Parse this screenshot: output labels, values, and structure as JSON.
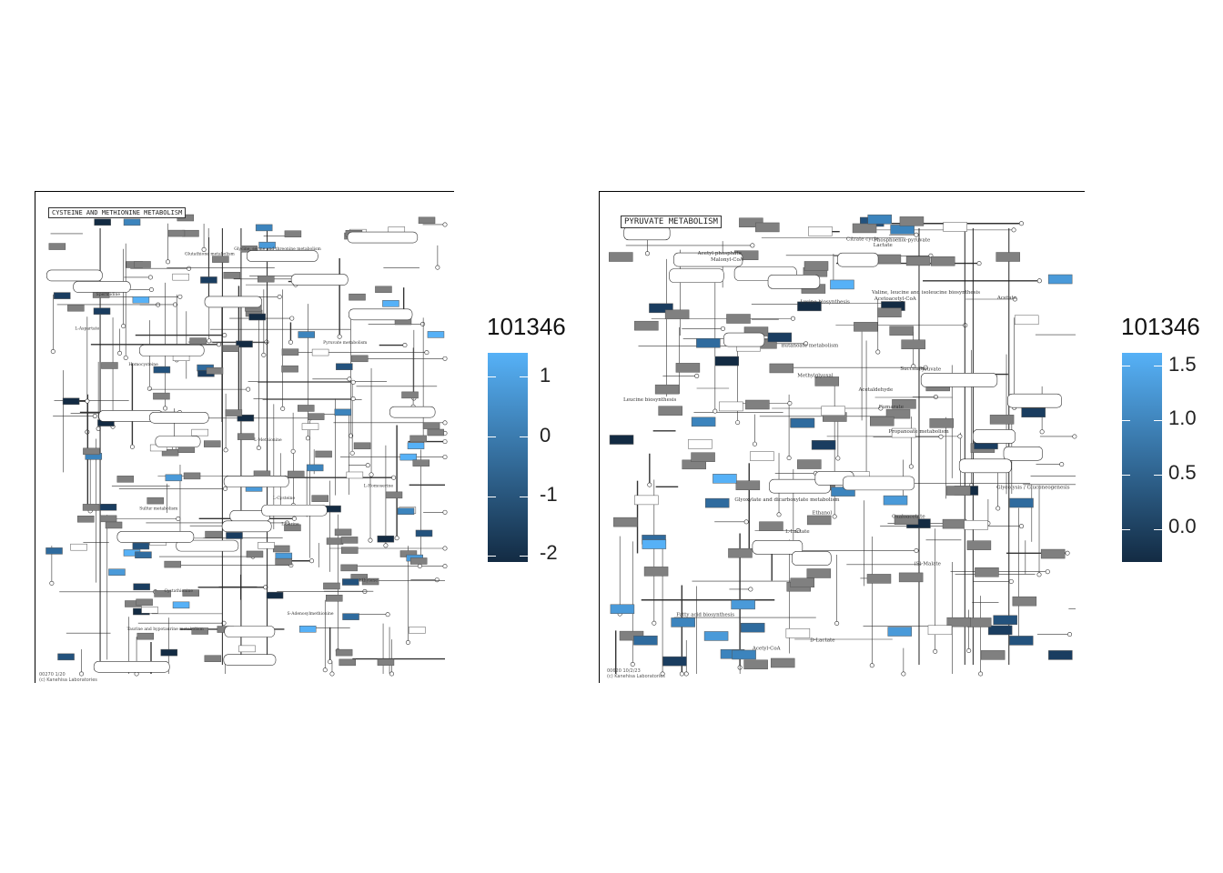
{
  "panels": [
    {
      "map_title": "CYSTEINE AND METHIONINE METABOLISM",
      "footer": "00270 1/20\n(c) Kanehisa Laboratories",
      "legend": {
        "title": "101346",
        "ticks": [
          {
            "value": 1,
            "label": "1"
          },
          {
            "value": 0,
            "label": "0"
          },
          {
            "value": -1,
            "label": "-1"
          },
          {
            "value": -2,
            "label": "-2"
          }
        ],
        "range": [
          -2.1,
          1.4
        ],
        "colors": {
          "high": "#56b1f7",
          "low": "#132b43"
        }
      },
      "labels": [
        "S-Adenosylmethionine",
        "L-Cysteine",
        "L-Methionine",
        "Glutathione metabolism",
        "Taurine and hypotaurine metabolism",
        "Pyruvate metabolism",
        "Homocysteine",
        "L-Serine",
        "Spermidine",
        "Ethylene",
        "Sulfur metabolism",
        "L-Homoserine",
        "Cystathionine",
        "L-Aspartate",
        "Glycine, serine and threonine metabolism"
      ]
    },
    {
      "map_title": "PYRUVATE METABOLISM",
      "footer": "00620 10/2/23\n(c) Kanehisa Laboratories",
      "legend": {
        "title": "101346",
        "ticks": [
          {
            "value": 1.5,
            "label": "1.5"
          },
          {
            "value": 1.0,
            "label": "1.0"
          },
          {
            "value": 0.5,
            "label": "0.5"
          },
          {
            "value": 0.0,
            "label": "0.0"
          }
        ],
        "range": [
          -0.3,
          1.62
        ],
        "colors": {
          "high": "#56b1f7",
          "low": "#132b43"
        }
      },
      "labels": [
        "Glycolysis / Gluconeogenesis",
        "Phosphoenol-pyruvate",
        "Pyruvate",
        "Acetyl-CoA",
        "Acetate",
        "Acetaldehyde",
        "Oxaloacetate",
        "(S)-Malate",
        "Fumarate",
        "Succinate",
        "Citrate cycle",
        "Lactate",
        "D-Lactate",
        "L-Lactate",
        "Methylglyoxal",
        "Acetoacetyl-CoA",
        "Malonyl-CoA",
        "Propanoate metabolism",
        "Fatty acid biosynthesis",
        "Lysine biosynthesis",
        "Leucine biosynthesis",
        "Butanoate metabolism",
        "Ethanol",
        "Acetyl-phosphate",
        "Glyoxylate and dicarboxylate metabolism",
        "Valine, leucine and isoleucine biosynthesis"
      ]
    }
  ],
  "colors": {
    "gray_box": "#808080",
    "line": "#333333"
  }
}
